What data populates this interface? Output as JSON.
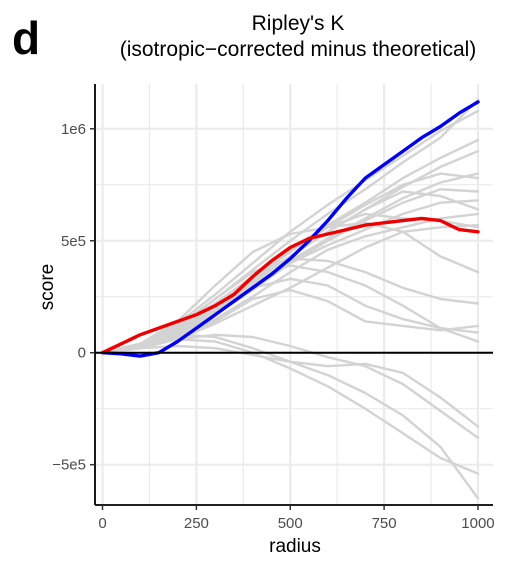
{
  "panel_letter": "d",
  "chart_data": {
    "type": "line",
    "title": "Ripley's K",
    "subtitle": "(isotropic−corrected minus theoretical)",
    "xlabel": "radius",
    "ylabel": "score",
    "xlim": [
      -20,
      1040
    ],
    "ylim": [
      -680000,
      1200000
    ],
    "x_ticks": [
      0,
      250,
      500,
      750,
      1000
    ],
    "x_tick_labels": [
      "0",
      "250",
      "500",
      "750",
      "1000"
    ],
    "y_ticks": [
      -500000,
      0,
      500000,
      1000000
    ],
    "y_tick_labels": [
      "−5e5",
      "0",
      "5e5",
      "1e6"
    ],
    "grid": true,
    "zero_line": true,
    "legend": "none",
    "colors": {
      "background_series": "#d3d3d3",
      "blue": "#0000ee",
      "red": "#ee0000",
      "zero_line": "#000000",
      "grid": "#ebebeb"
    },
    "series": [
      {
        "color": "gray",
        "x": [
          0,
          100,
          200,
          300,
          400,
          500,
          600,
          700,
          800,
          900,
          1000
        ],
        "y": [
          0,
          40000,
          130000,
          260000,
          400000,
          540000,
          660000,
          770000,
          880000,
          990000,
          1080000
        ]
      },
      {
        "color": "gray",
        "x": [
          0,
          100,
          200,
          300,
          400,
          500,
          600,
          700,
          800,
          900,
          1000
        ],
        "y": [
          0,
          40000,
          120000,
          240000,
          370000,
          500000,
          620000,
          730000,
          850000,
          960000,
          1130000
        ]
      },
      {
        "color": "gray",
        "x": [
          0,
          100,
          200,
          300,
          400,
          500,
          600,
          700,
          800,
          900,
          1000
        ],
        "y": [
          0,
          30000,
          110000,
          220000,
          340000,
          460000,
          570000,
          670000,
          780000,
          870000,
          950000
        ]
      },
      {
        "color": "gray",
        "x": [
          0,
          100,
          200,
          300,
          400,
          500,
          600,
          700,
          800,
          900,
          1000
        ],
        "y": [
          0,
          30000,
          100000,
          200000,
          320000,
          430000,
          540000,
          640000,
          740000,
          830000,
          900000
        ]
      },
      {
        "color": "gray",
        "x": [
          0,
          100,
          200,
          300,
          400,
          500,
          600,
          700,
          800,
          900,
          1000
        ],
        "y": [
          0,
          30000,
          100000,
          210000,
          330000,
          450000,
          560000,
          660000,
          750000,
          800000,
          780000
        ]
      },
      {
        "color": "gray",
        "x": [
          0,
          100,
          200,
          300,
          400,
          500,
          600,
          700,
          800,
          900,
          1000
        ],
        "y": [
          0,
          30000,
          90000,
          190000,
          300000,
          410000,
          510000,
          600000,
          690000,
          760000,
          800000
        ]
      },
      {
        "color": "gray",
        "x": [
          0,
          100,
          200,
          300,
          400,
          500,
          600,
          700,
          800,
          900,
          1000
        ],
        "y": [
          0,
          30000,
          90000,
          180000,
          290000,
          400000,
          500000,
          590000,
          670000,
          730000,
          720000
        ]
      },
      {
        "color": "gray",
        "x": [
          0,
          100,
          200,
          300,
          400,
          500,
          600,
          700,
          800,
          900,
          1000
        ],
        "y": [
          0,
          30000,
          100000,
          200000,
          310000,
          430000,
          540000,
          640000,
          720000,
          700000,
          640000
        ]
      },
      {
        "color": "gray",
        "x": [
          0,
          100,
          200,
          300,
          400,
          500,
          600,
          700,
          800,
          900,
          1000
        ],
        "y": [
          0,
          20000,
          80000,
          170000,
          280000,
          400000,
          480000,
          550000,
          620000,
          670000,
          680000
        ]
      },
      {
        "color": "gray",
        "x": [
          0,
          100,
          200,
          300,
          400,
          500,
          600,
          700,
          800,
          900,
          1000
        ],
        "y": [
          0,
          20000,
          80000,
          180000,
          320000,
          460000,
          560000,
          620000,
          600000,
          590000,
          560000
        ]
      },
      {
        "color": "gray",
        "x": [
          0,
          100,
          200,
          300,
          400,
          500,
          600,
          700,
          800,
          900,
          1000
        ],
        "y": [
          0,
          20000,
          70000,
          150000,
          250000,
          360000,
          460000,
          520000,
          560000,
          600000,
          620000
        ]
      },
      {
        "color": "gray",
        "x": [
          0,
          100,
          200,
          300,
          400,
          500,
          600,
          700,
          800,
          900,
          1000
        ],
        "y": [
          0,
          20000,
          60000,
          130000,
          210000,
          290000,
          380000,
          470000,
          540000,
          560000,
          570000
        ]
      },
      {
        "color": "gray",
        "x": [
          0,
          100,
          200,
          300,
          400,
          500,
          600,
          700,
          800,
          900,
          1000
        ],
        "y": [
          0,
          40000,
          140000,
          300000,
          450000,
          530000,
          560000,
          580000,
          540000,
          430000,
          360000
        ]
      },
      {
        "color": "gray",
        "x": [
          0,
          100,
          200,
          300,
          400,
          500,
          600,
          700,
          800,
          900,
          1000
        ],
        "y": [
          0,
          30000,
          110000,
          240000,
          360000,
          420000,
          410000,
          360000,
          290000,
          240000,
          220000
        ]
      },
      {
        "color": "gray",
        "x": [
          0,
          100,
          200,
          300,
          400,
          500,
          600,
          700,
          800,
          900,
          1000
        ],
        "y": [
          0,
          30000,
          100000,
          220000,
          330000,
          390000,
          360000,
          300000,
          210000,
          110000,
          50000
        ]
      },
      {
        "color": "gray",
        "x": [
          0,
          100,
          200,
          300,
          400,
          500,
          600,
          700,
          800,
          900,
          1000
        ],
        "y": [
          0,
          30000,
          90000,
          200000,
          290000,
          330000,
          300000,
          210000,
          150000,
          110000,
          90000
        ]
      },
      {
        "color": "gray",
        "x": [
          0,
          100,
          200,
          300,
          400,
          500,
          600,
          700,
          800,
          900,
          1000
        ],
        "y": [
          0,
          20000,
          70000,
          140000,
          240000,
          280000,
          230000,
          140000,
          120000,
          100000,
          120000
        ]
      },
      {
        "color": "gray",
        "x": [
          0,
          100,
          200,
          300,
          400,
          500,
          600,
          700,
          800,
          900,
          1000
        ],
        "y": [
          0,
          30000,
          60000,
          80000,
          70000,
          30000,
          -20000,
          -60000,
          -140000,
          -260000,
          -380000
        ]
      },
      {
        "color": "gray",
        "x": [
          0,
          100,
          200,
          300,
          400,
          500,
          600,
          700,
          800,
          900,
          1000
        ],
        "y": [
          0,
          40000,
          80000,
          70000,
          20000,
          -40000,
          -100000,
          -180000,
          -280000,
          -420000,
          -650000
        ]
      },
      {
        "color": "gray",
        "x": [
          0,
          100,
          200,
          300,
          400,
          500,
          600,
          700,
          800,
          900,
          1000
        ],
        "y": [
          0,
          30000,
          60000,
          50000,
          0,
          -70000,
          -150000,
          -250000,
          -360000,
          -470000,
          -540000
        ]
      },
      {
        "color": "gray",
        "x": [
          0,
          100,
          200,
          300,
          400,
          500,
          600,
          700,
          800,
          900,
          1000
        ],
        "y": [
          0,
          20000,
          30000,
          20000,
          -10000,
          -40000,
          -60000,
          -50000,
          -90000,
          -200000,
          -330000
        ]
      },
      {
        "color": "blue",
        "x": [
          0,
          50,
          100,
          150,
          200,
          250,
          300,
          350,
          400,
          450,
          500,
          550,
          600,
          650,
          700,
          750,
          800,
          850,
          900,
          950,
          1000
        ],
        "y": [
          0,
          -5000,
          -15000,
          0,
          50000,
          110000,
          170000,
          230000,
          290000,
          350000,
          420000,
          500000,
          590000,
          690000,
          780000,
          840000,
          900000,
          960000,
          1010000,
          1070000,
          1120000
        ]
      },
      {
        "color": "red",
        "x": [
          0,
          50,
          100,
          150,
          200,
          250,
          300,
          350,
          400,
          450,
          500,
          550,
          600,
          650,
          700,
          750,
          800,
          850,
          900,
          950,
          1000
        ],
        "y": [
          0,
          40000,
          80000,
          110000,
          140000,
          170000,
          210000,
          260000,
          340000,
          410000,
          470000,
          510000,
          530000,
          550000,
          570000,
          580000,
          590000,
          600000,
          590000,
          550000,
          540000
        ]
      }
    ]
  }
}
